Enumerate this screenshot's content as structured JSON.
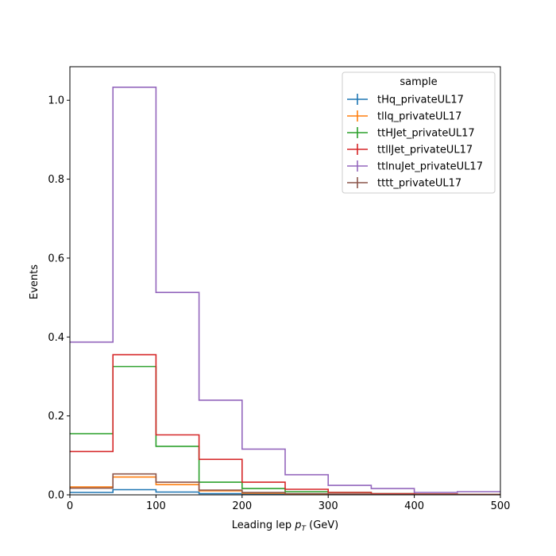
{
  "chart_data": {
    "type": "step",
    "xlabel_prefix": "Leading lep ",
    "xlabel_var": "p",
    "xlabel_sub": "T",
    "xlabel_suffix": " (GeV)",
    "ylabel": "Events",
    "xlim": [
      0,
      500
    ],
    "ylim": [
      0,
      1.085
    ],
    "x_ticks": [
      0,
      100,
      200,
      300,
      400,
      500
    ],
    "y_ticks": [
      0.0,
      0.2,
      0.4,
      0.6,
      0.8,
      1.0
    ],
    "y_tick_labels": [
      "0.0",
      "0.2",
      "0.4",
      "0.6",
      "0.8",
      "1.0"
    ],
    "bin_edges": [
      0,
      50,
      100,
      150,
      200,
      250,
      300,
      350,
      400,
      450,
      500
    ],
    "legend_title": "sample",
    "legend_position": "top-right",
    "series": [
      {
        "name": "tHq_privateUL17",
        "color": "#1f77b4",
        "values": [
          0.006,
          0.013,
          0.007,
          0.003,
          0.002,
          0.001,
          0.0005,
          0.0003,
          0.0002,
          0.0001
        ]
      },
      {
        "name": "tllq_privateUL17",
        "color": "#ff7f0e",
        "values": [
          0.02,
          0.045,
          0.026,
          0.01,
          0.004,
          0.002,
          0.001,
          0.0006,
          0.0004,
          0.0002
        ]
      },
      {
        "name": "ttHJet_privateUL17",
        "color": "#2ca02c",
        "values": [
          0.155,
          0.325,
          0.123,
          0.032,
          0.016,
          0.008,
          0.006,
          0.003,
          0.002,
          0.001
        ]
      },
      {
        "name": "ttllJet_privateUL17",
        "color": "#d62728",
        "values": [
          0.11,
          0.355,
          0.152,
          0.09,
          0.032,
          0.014,
          0.006,
          0.003,
          0.002,
          0.001
        ]
      },
      {
        "name": "ttlnuJet_privateUL17",
        "color": "#9467bd",
        "values": [
          0.387,
          1.033,
          0.513,
          0.24,
          0.116,
          0.051,
          0.024,
          0.016,
          0.006,
          0.008
        ]
      },
      {
        "name": "tttt_privateUL17",
        "color": "#8c564b",
        "values": [
          0.017,
          0.053,
          0.032,
          0.012,
          0.006,
          0.003,
          0.002,
          0.001,
          0.0006,
          0.0003
        ]
      }
    ]
  }
}
